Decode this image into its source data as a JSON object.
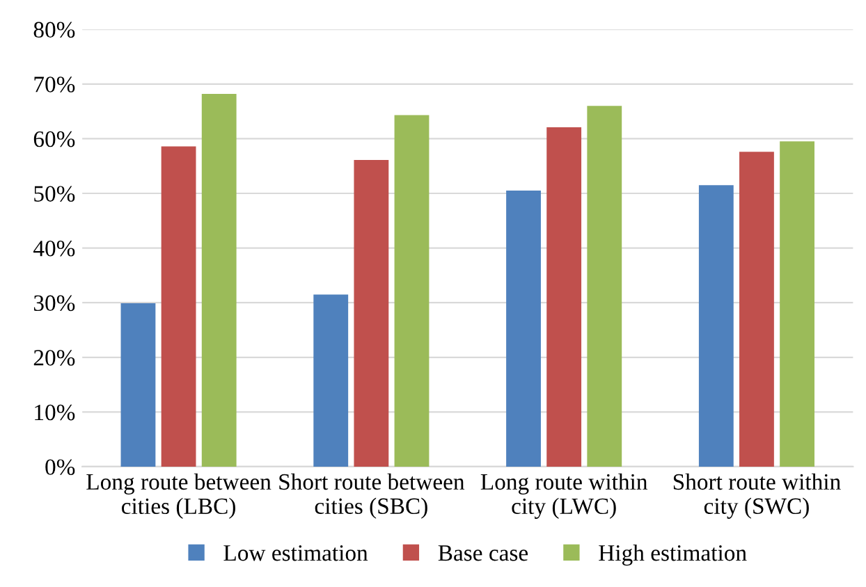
{
  "chart_data": {
    "type": "bar",
    "categories": [
      "Long route between\ncities (LBC)",
      "Short route between\ncities (SBC)",
      "Long route within\ncity (LWC)",
      "Short route within\ncity (SWC)"
    ],
    "series": [
      {
        "name": "Low estimation",
        "color": "#4f81bd",
        "values": [
          29.9,
          31.5,
          50.5,
          51.5
        ]
      },
      {
        "name": "Base case",
        "color": "#c0504d",
        "values": [
          58.6,
          56.1,
          62.1,
          57.6
        ]
      },
      {
        "name": "High estimation",
        "color": "#9bbb59",
        "values": [
          68.2,
          64.3,
          66.0,
          59.5
        ]
      }
    ],
    "ylim": [
      0,
      80
    ],
    "yticks": [
      {
        "value": 0,
        "label": "0%"
      },
      {
        "value": 10,
        "label": "10%"
      },
      {
        "value": 20,
        "label": "20%"
      },
      {
        "value": 30,
        "label": "30%"
      },
      {
        "value": 40,
        "label": "40%"
      },
      {
        "value": 50,
        "label": "50%"
      },
      {
        "value": 60,
        "label": "60%"
      },
      {
        "value": 70,
        "label": "70%"
      },
      {
        "value": 80,
        "label": "80%"
      }
    ],
    "grid": "y",
    "legend": "bottom"
  }
}
